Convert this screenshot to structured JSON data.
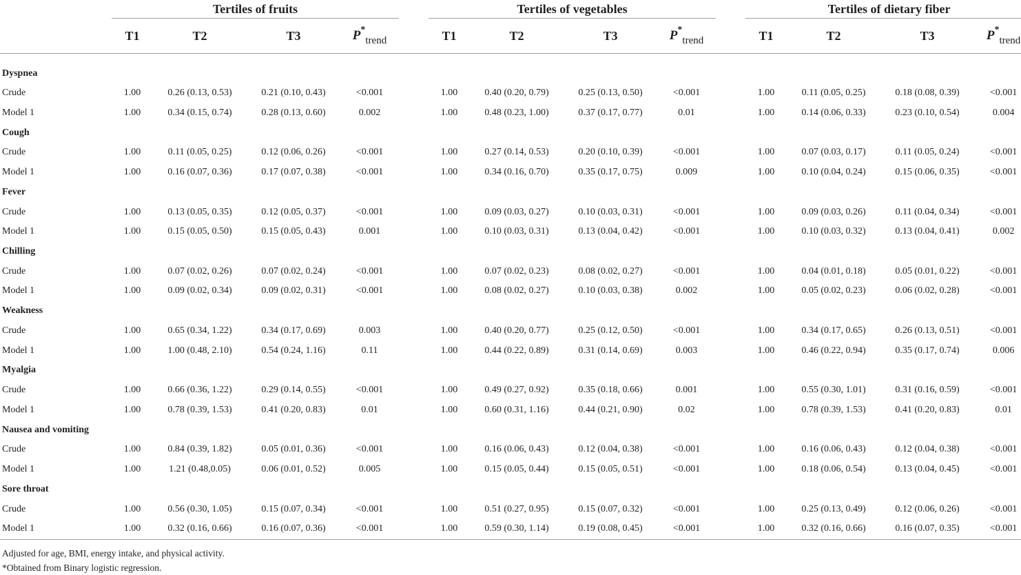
{
  "groups": [
    {
      "title": "Tertiles of fruits"
    },
    {
      "title": "Tertiles of vegetables"
    },
    {
      "title": "Tertiles of dietary fiber"
    }
  ],
  "subheaders": {
    "t1": "T1",
    "t2": "T2",
    "t3": "T3",
    "p": "P",
    "p_star": "*",
    "p_sub": "trend"
  },
  "categories": [
    {
      "name": "Dyspnea",
      "rows": [
        {
          "label": "Crude",
          "cells": [
            "1.00",
            "0.26 (0.13, 0.53)",
            "0.21 (0.10, 0.43)",
            "<0.001",
            "1.00",
            "0.40 (0.20, 0.79)",
            "0.25 (0.13, 0.50)",
            "<0.001",
            "1.00",
            "0.11 (0.05, 0.25)",
            "0.18 (0.08, 0.39)",
            "<0.001"
          ]
        },
        {
          "label": "Model 1",
          "cells": [
            "1.00",
            "0.34 (0.15, 0.74)",
            "0.28 (0.13, 0.60)",
            "0.002",
            "1.00",
            "0.48 (0.23, 1.00)",
            "0.37 (0.17, 0.77)",
            "0.01",
            "1.00",
            "0.14 (0.06, 0.33)",
            "0.23 (0.10, 0.54)",
            "0.004"
          ]
        }
      ]
    },
    {
      "name": "Cough",
      "rows": [
        {
          "label": "Crude",
          "cells": [
            "1.00",
            "0.11 (0.05, 0.25)",
            "0.12 (0.06, 0.26)",
            "<0.001",
            "1.00",
            "0.27 (0.14, 0.53)",
            "0.20 (0.10, 0.39)",
            "<0.001",
            "1.00",
            "0.07 (0.03, 0.17)",
            "0.11 (0.05, 0.24)",
            "<0.001"
          ]
        },
        {
          "label": "Model 1",
          "cells": [
            "1.00",
            "0.16 (0.07, 0.36)",
            "0.17 (0.07, 0.38)",
            "<0.001",
            "1.00",
            "0.34 (0.16, 0.70)",
            "0.35 (0.17, 0.75)",
            "0.009",
            "1.00",
            "0.10 (0.04, 0.24)",
            "0.15 (0.06, 0.35)",
            "<0.001"
          ]
        }
      ]
    },
    {
      "name": "Fever",
      "rows": [
        {
          "label": "Crude",
          "cells": [
            "1.00",
            "0.13 (0.05, 0.35)",
            "0.12 (0.05, 0.37)",
            "<0.001",
            "1.00",
            "0.09 (0.03, 0.27)",
            "0.10 (0.03, 0.31)",
            "<0.001",
            "1.00",
            "0.09 (0.03, 0.26)",
            "0.11 (0.04, 0.34)",
            "<0.001"
          ]
        },
        {
          "label": "Model 1",
          "cells": [
            "1.00",
            "0.15 (0.05, 0.50)",
            "0.15 (0.05, 0.43)",
            "0.001",
            "1.00",
            "0.10 (0.03, 0.31)",
            "0.13 (0.04, 0.42)",
            "<0.001",
            "1.00",
            "0.10 (0.03, 0.32)",
            "0.13 (0.04, 0.41)",
            "0.002"
          ]
        }
      ]
    },
    {
      "name": "Chilling",
      "rows": [
        {
          "label": "Crude",
          "cells": [
            "1.00",
            "0.07 (0.02, 0.26)",
            "0.07 (0.02, 0.24)",
            "<0.001",
            "1.00",
            "0.07 (0.02, 0.23)",
            "0.08 (0.02, 0.27)",
            "<0.001",
            "1.00",
            "0.04 (0.01, 0.18)",
            "0.05 (0.01, 0.22)",
            "<0.001"
          ]
        },
        {
          "label": "Model 1",
          "cells": [
            "1.00",
            "0.09 (0.02, 0.34)",
            "0.09 (0.02, 0.31)",
            "<0.001",
            "1.00",
            "0.08 (0.02, 0.27)",
            "0.10 (0.03, 0.38)",
            "0.002",
            "1.00",
            "0.05 (0.02, 0.23)",
            "0.06 (0.02, 0.28)",
            "<0.001"
          ]
        }
      ]
    },
    {
      "name": "Weakness",
      "rows": [
        {
          "label": "Crude",
          "cells": [
            "1.00",
            "0.65 (0.34, 1.22)",
            "0.34 (0.17, 0.69)",
            "0.003",
            "1.00",
            "0.40 (0.20, 0.77)",
            "0.25 (0.12, 0.50)",
            "<0.001",
            "1.00",
            "0.34 (0.17, 0.65)",
            "0.26 (0.13, 0.51)",
            "<0.001"
          ]
        },
        {
          "label": "Model 1",
          "cells": [
            "1.00",
            "1.00 (0.48, 2.10)",
            "0.54 (0.24, 1.16)",
            "0.11",
            "1.00",
            "0.44 (0.22, 0.89)",
            "0.31 (0.14, 0.69)",
            "0.003",
            "1.00",
            "0.46 (0.22, 0.94)",
            "0.35 (0.17, 0.74)",
            "0.006"
          ]
        }
      ]
    },
    {
      "name": "Myalgia",
      "rows": [
        {
          "label": "Crude",
          "cells": [
            "1.00",
            "0.66 (0.36, 1.22)",
            "0.29 (0.14, 0.55)",
            "<0.001",
            "1.00",
            "0.49 (0.27, 0.92)",
            "0.35 (0.18, 0.66)",
            "0.001",
            "1.00",
            "0.55 (0.30, 1.01)",
            "0.31 (0.16, 0.59)",
            "<0.001"
          ]
        },
        {
          "label": "Model 1",
          "cells": [
            "1.00",
            "0.78 (0.39, 1.53)",
            "0.41 (0.20, 0.83)",
            "0.01",
            "1.00",
            "0.60 (0.31, 1.16)",
            "0.44 (0.21, 0.90)",
            "0.02",
            "1.00",
            "0.78 (0.39, 1.53)",
            "0.41 (0.20, 0.83)",
            "0.01"
          ]
        }
      ]
    },
    {
      "name": "Nausea and vomiting",
      "rows": [
        {
          "label": "Crude",
          "cells": [
            "1.00",
            "0.84 (0.39, 1.82)",
            "0.05 (0.01, 0.36)",
            "<0.001",
            "1.00",
            "0.16 (0.06, 0.43)",
            "0.12 (0.04, 0.38)",
            "<0.001",
            "1.00",
            "0.16 (0.06, 0.43)",
            "0.12 (0.04, 0.38)",
            "<0.001"
          ]
        },
        {
          "label": "Model 1",
          "cells": [
            "1.00",
            "1.21 (0.48,0.05)",
            "0.06 (0.01, 0.52)",
            "0.005",
            "1.00",
            "0.15 (0.05, 0.44)",
            "0.15 (0.05, 0.51)",
            "<0.001",
            "1.00",
            "0.18 (0.06, 0.54)",
            "0.13 (0.04, 0.45)",
            "<0.001"
          ]
        }
      ]
    },
    {
      "name": "Sore throat",
      "rows": [
        {
          "label": "Crude",
          "cells": [
            "1.00",
            "0.56 (0.30, 1.05)",
            "0.15 (0.07, 0.34)",
            "<0.001",
            "1.00",
            "0.51 (0.27, 0.95)",
            "0.15 (0.07, 0.32)",
            "<0.001",
            "1.00",
            "0.25 (0.13, 0.49)",
            "0.12 (0.06, 0.26)",
            "<0.001"
          ]
        },
        {
          "label": "Model 1",
          "cells": [
            "1.00",
            "0.32 (0.16, 0.66)",
            "0.16 (0.07, 0.36)",
            "<0.001",
            "1.00",
            "0.59 (0.30, 1.14)",
            "0.19 (0.08, 0.45)",
            "<0.001",
            "1.00",
            "0.32 (0.16, 0.66)",
            "0.16 (0.07, 0.35)",
            "<0.001"
          ]
        }
      ]
    }
  ],
  "footnotes": [
    "Adjusted for age, BMI, energy intake, and physical activity.",
    "*Obtained from Binary logistic regression."
  ]
}
